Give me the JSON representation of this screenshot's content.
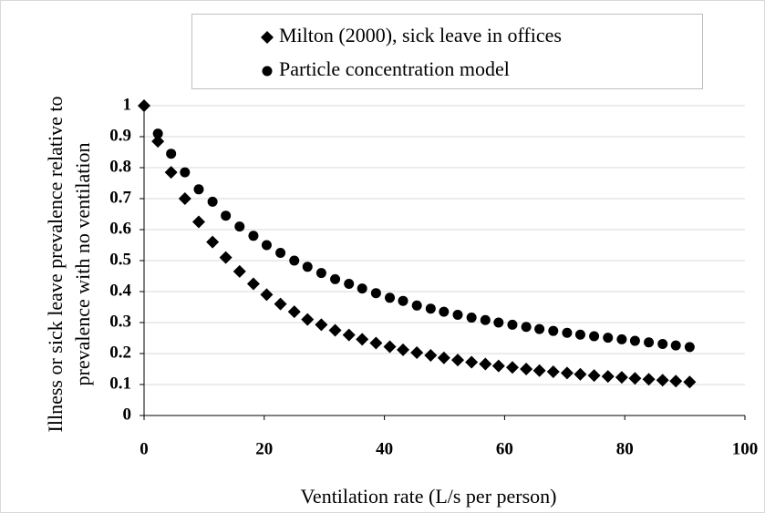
{
  "chart_data": {
    "type": "scatter",
    "xlabel": "Ventilation rate (L/s per person)",
    "ylabel": [
      "Illness or sick leave prevalence relative to",
      "prevalence with no ventilation"
    ],
    "xlim": [
      0,
      100
    ],
    "xticks": [
      0,
      20,
      40,
      60,
      80,
      100
    ],
    "ylim": [
      0,
      1
    ],
    "yticks": [
      0,
      0.1,
      0.2,
      0.3,
      0.4,
      0.5,
      0.6,
      0.7,
      0.8,
      0.9,
      1
    ],
    "grid": true,
    "legend": "top",
    "series": [
      {
        "name": "Milton (2000), sick leave in offices",
        "color": "#000000",
        "marker": "diamond",
        "x": [
          0,
          2.3,
          4.5,
          6.8,
          9.1,
          11.4,
          13.6,
          15.9,
          18.2,
          20.4,
          22.7,
          25.0,
          27.2,
          29.5,
          31.8,
          34.1,
          36.3,
          38.6,
          40.9,
          43.1,
          45.4,
          47.7,
          49.9,
          52.2,
          54.5,
          56.8,
          59.0,
          61.3,
          63.6,
          65.8,
          68.1,
          70.4,
          72.6,
          74.9,
          77.2,
          79.5,
          81.7,
          84.0,
          86.3,
          88.5,
          90.8
        ],
        "values": [
          1.0,
          0.885,
          0.785,
          0.7,
          0.625,
          0.56,
          0.51,
          0.465,
          0.425,
          0.39,
          0.36,
          0.335,
          0.31,
          0.293,
          0.275,
          0.26,
          0.246,
          0.234,
          0.222,
          0.212,
          0.203,
          0.194,
          0.186,
          0.179,
          0.172,
          0.166,
          0.16,
          0.155,
          0.15,
          0.145,
          0.141,
          0.137,
          0.133,
          0.129,
          0.126,
          0.123,
          0.12,
          0.117,
          0.114,
          0.111,
          0.108
        ]
      },
      {
        "name": "Particle concentration model",
        "color": "#000000",
        "marker": "circle",
        "x": [
          2.3,
          4.5,
          6.8,
          9.1,
          11.4,
          13.6,
          15.9,
          18.2,
          20.4,
          22.7,
          25.0,
          27.2,
          29.5,
          31.8,
          34.1,
          36.3,
          38.6,
          40.9,
          43.1,
          45.4,
          47.7,
          49.9,
          52.2,
          54.5,
          56.8,
          59.0,
          61.3,
          63.6,
          65.8,
          68.1,
          70.4,
          72.6,
          74.9,
          77.2,
          79.5,
          81.7,
          84.0,
          86.3,
          88.5,
          90.8
        ],
        "values": [
          0.91,
          0.845,
          0.785,
          0.73,
          0.69,
          0.645,
          0.61,
          0.58,
          0.55,
          0.525,
          0.5,
          0.48,
          0.46,
          0.44,
          0.425,
          0.41,
          0.395,
          0.38,
          0.37,
          0.355,
          0.345,
          0.335,
          0.325,
          0.316,
          0.308,
          0.3,
          0.293,
          0.286,
          0.279,
          0.273,
          0.267,
          0.261,
          0.256,
          0.251,
          0.246,
          0.241,
          0.236,
          0.231,
          0.226,
          0.221
        ]
      }
    ]
  }
}
